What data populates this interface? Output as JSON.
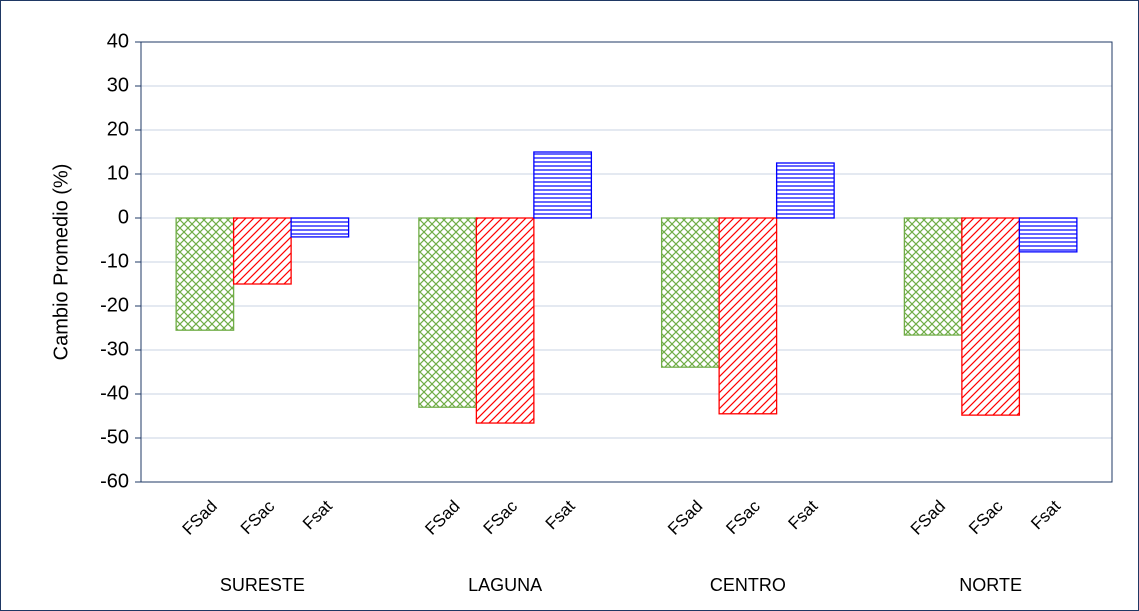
{
  "chart_data": {
    "type": "bar",
    "y_label": "Cambio Promedio (%)",
    "categories": [
      "SURESTE",
      "LAGUNA",
      "CENTRO",
      "NORTE"
    ],
    "series": [
      {
        "name": "FSad",
        "color": "#70ad47",
        "hatch": "crosshatch",
        "values": [
          -25.5,
          -43,
          -33.9,
          -26.6
        ]
      },
      {
        "name": "FSac",
        "color": "#ff0000",
        "hatch": "diagonal",
        "values": [
          -15,
          -46.6,
          -44.5,
          -44.8
        ]
      },
      {
        "name": "Fsat",
        "color": "#0000ff",
        "hatch": "horizontal",
        "values": [
          -4.3,
          15,
          12.5,
          -7.7
        ]
      }
    ],
    "ylim": [
      -60,
      40
    ],
    "yticks": [
      -60,
      -50,
      -40,
      -30,
      -20,
      -10,
      0,
      10,
      20,
      30,
      40
    ],
    "grid": true
  }
}
